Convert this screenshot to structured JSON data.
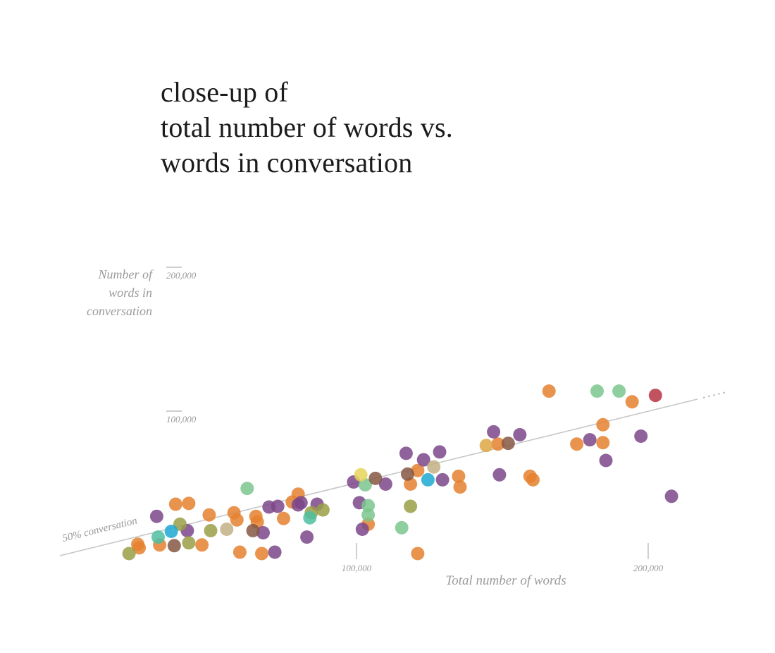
{
  "title": {
    "line1": "close-up of",
    "line2": "total number of words vs.",
    "line3": "words in conversation"
  },
  "y_axis": {
    "label_line1": "Number of",
    "label_line2": "words in",
    "label_line3": "conversation",
    "tick_200k": "200,000",
    "tick_100k": "100,000"
  },
  "x_axis": {
    "label": "Total number of words",
    "tick_100k": "100,000",
    "tick_200k": "200,000"
  },
  "reference_line": {
    "label": "50% conversation"
  },
  "chart_data": {
    "type": "scatter",
    "title": "close-up of total number of words vs. words in conversation",
    "xlabel": "Total number of words",
    "ylabel": "Number of words in conversation",
    "x_ticks": [
      100000,
      200000
    ],
    "y_ticks": [
      100000,
      200000
    ],
    "xlim": [
      0,
      220000
    ],
    "ylim": [
      0,
      210000
    ],
    "grid": false,
    "legend": "none",
    "reference_line": {
      "label": "50% conversation",
      "equation": "y = 0.5 * x",
      "style": "solid, dotted continuation at right end"
    },
    "point_radius": 9.5,
    "point_opacity": 0.85,
    "palette": {
      "orange": "#E5812F",
      "purple": "#7C4789",
      "green": "#7BC78E",
      "teal": "#4EBEA2",
      "olive": "#999F47",
      "blue": "#1DA8D2",
      "red": "#B63444",
      "brown": "#855743",
      "tan": "#C2AF84",
      "yellow": "#E8D35C",
      "gold": "#DDA743"
    },
    "points": [
      [
        25000,
        7000,
        "orange"
      ],
      [
        25500,
        4500,
        "orange"
      ],
      [
        32500,
        6500,
        "orange"
      ],
      [
        38000,
        35000,
        "orange"
      ],
      [
        42500,
        35500,
        "orange"
      ],
      [
        47000,
        6500,
        "orange"
      ],
      [
        49500,
        27500,
        "orange"
      ],
      [
        58000,
        29000,
        "orange"
      ],
      [
        59000,
        24000,
        "orange"
      ],
      [
        60000,
        1500,
        "orange"
      ],
      [
        65500,
        26500,
        "orange"
      ],
      [
        66000,
        22500,
        "orange"
      ],
      [
        67500,
        500,
        "orange"
      ],
      [
        75000,
        25000,
        "orange"
      ],
      [
        78000,
        36500,
        "orange"
      ],
      [
        80000,
        42000,
        "orange"
      ],
      [
        104000,
        21000,
        "orange"
      ],
      [
        118500,
        49000,
        "orange"
      ],
      [
        121000,
        58500,
        "orange"
      ],
      [
        121000,
        500,
        "orange"
      ],
      [
        135000,
        54500,
        "orange"
      ],
      [
        135500,
        47000,
        "orange"
      ],
      [
        148500,
        77000,
        "orange"
      ],
      [
        159500,
        54500,
        "orange"
      ],
      [
        160500,
        52000,
        "orange"
      ],
      [
        166000,
        114000,
        "orange"
      ],
      [
        175500,
        77000,
        "orange"
      ],
      [
        184500,
        90500,
        "orange"
      ],
      [
        184500,
        78000,
        "orange"
      ],
      [
        194500,
        106500,
        "orange"
      ],
      [
        31500,
        26500,
        "purple"
      ],
      [
        42000,
        16500,
        "purple"
      ],
      [
        68000,
        15000,
        "purple"
      ],
      [
        70000,
        33000,
        "purple"
      ],
      [
        72000,
        1500,
        "purple"
      ],
      [
        73000,
        33500,
        "purple"
      ],
      [
        80000,
        34500,
        "purple"
      ],
      [
        81000,
        36000,
        "purple"
      ],
      [
        83000,
        12000,
        "purple"
      ],
      [
        86500,
        35000,
        "purple"
      ],
      [
        99000,
        50500,
        "purple"
      ],
      [
        101000,
        36000,
        "purple"
      ],
      [
        102000,
        17500,
        "purple"
      ],
      [
        110000,
        49000,
        "purple"
      ],
      [
        117000,
        70500,
        "purple"
      ],
      [
        123000,
        66000,
        "purple"
      ],
      [
        128500,
        71500,
        "purple"
      ],
      [
        129500,
        52000,
        "purple"
      ],
      [
        147000,
        85500,
        "purple"
      ],
      [
        149000,
        55500,
        "purple"
      ],
      [
        156000,
        83500,
        "purple"
      ],
      [
        180000,
        80000,
        "purple"
      ],
      [
        185500,
        65500,
        "purple"
      ],
      [
        197500,
        82500,
        "purple"
      ],
      [
        208000,
        40500,
        "purple"
      ],
      [
        22000,
        500,
        "olive"
      ],
      [
        39500,
        21000,
        "olive"
      ],
      [
        42500,
        8000,
        "olive"
      ],
      [
        50000,
        16500,
        "olive"
      ],
      [
        84500,
        29000,
        "olive"
      ],
      [
        88500,
        31000,
        "olive"
      ],
      [
        118500,
        33500,
        "olive"
      ],
      [
        62500,
        46000,
        "green"
      ],
      [
        103000,
        48500,
        "green"
      ],
      [
        104000,
        34000,
        "green"
      ],
      [
        104000,
        27500,
        "green"
      ],
      [
        115500,
        18500,
        "green"
      ],
      [
        182500,
        114000,
        "green"
      ],
      [
        190000,
        114000,
        "green"
      ],
      [
        32000,
        12000,
        "teal"
      ],
      [
        84000,
        25500,
        "teal"
      ],
      [
        36500,
        16000,
        "blue"
      ],
      [
        124500,
        52000,
        "blue"
      ],
      [
        37500,
        6000,
        "brown"
      ],
      [
        64500,
        16500,
        "brown"
      ],
      [
        106500,
        53000,
        "brown"
      ],
      [
        117500,
        56000,
        "brown"
      ],
      [
        152000,
        77500,
        "brown"
      ],
      [
        55500,
        17500,
        "tan"
      ],
      [
        126500,
        61000,
        "tan"
      ],
      [
        101500,
        55500,
        "yellow"
      ],
      [
        144500,
        76000,
        "gold"
      ],
      [
        202500,
        111000,
        "red"
      ]
    ]
  }
}
